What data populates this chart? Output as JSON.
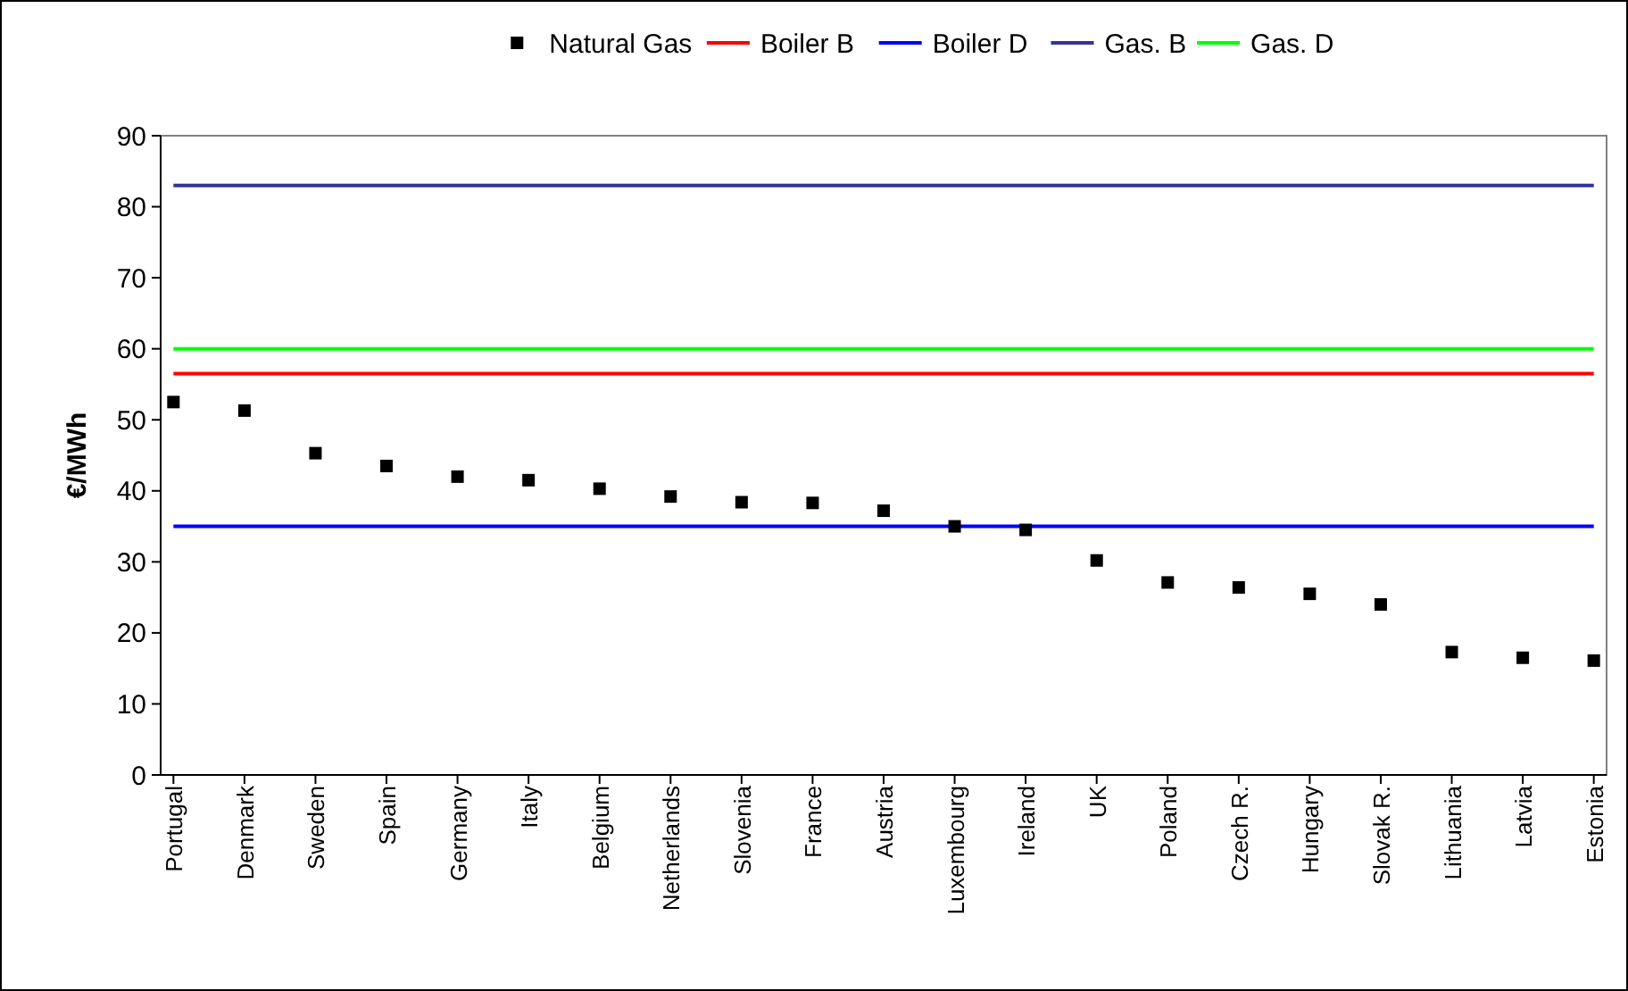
{
  "chart_data": {
    "type": "scatter",
    "ylabel": "€/MWh",
    "categories": [
      "Portugal",
      "Denmark",
      "Sweden",
      "Spain",
      "Germany",
      "Italy",
      "Belgium",
      "Netherlands",
      "Slovenia",
      "France",
      "Austria",
      "Luxembourg",
      "Ireland",
      "UK",
      "Poland",
      "Czech R.",
      "Hungary",
      "Slovak R.",
      "Lithuania",
      "Latvia",
      "Estonia"
    ],
    "series": [
      {
        "name": "Natural Gas",
        "marker": "square",
        "color": "#000000",
        "values": [
          52.5,
          51.3,
          45.3,
          43.5,
          42,
          41.5,
          40.3,
          39.2,
          38.4,
          38.3,
          37.2,
          35,
          34.5,
          30.2,
          27.1,
          26.4,
          25.5,
          24,
          17.3,
          16.5,
          16.1
        ]
      },
      {
        "name": "Boiler B",
        "type": "line",
        "color": "#ff0000",
        "values": [
          56.5,
          56.5,
          56.5,
          56.5,
          56.5,
          56.5,
          56.5,
          56.5,
          56.5,
          56.5,
          56.5,
          56.5,
          56.5,
          56.5,
          56.5,
          56.5,
          56.5,
          56.5,
          56.5,
          56.5,
          56.5
        ]
      },
      {
        "name": "Boiler D",
        "type": "line",
        "color": "#0000ff",
        "values": [
          35,
          35,
          35,
          35,
          35,
          35,
          35,
          35,
          35,
          35,
          35,
          35,
          35,
          35,
          35,
          35,
          35,
          35,
          35,
          35,
          35
        ]
      },
      {
        "name": "Gas. B",
        "type": "line",
        "color": "#333399",
        "values": [
          83,
          83,
          83,
          83,
          83,
          83,
          83,
          83,
          83,
          83,
          83,
          83,
          83,
          83,
          83,
          83,
          83,
          83,
          83,
          83,
          83
        ]
      },
      {
        "name": "Gas. D",
        "type": "line",
        "color": "#00ff00",
        "values": [
          60,
          60,
          60,
          60,
          60,
          60,
          60,
          60,
          60,
          60,
          60,
          60,
          60,
          60,
          60,
          60,
          60,
          60,
          60,
          60,
          60
        ]
      }
    ],
    "ylim": [
      0,
      90
    ],
    "yticks": [
      0,
      10,
      20,
      30,
      40,
      50,
      60,
      70,
      80,
      90
    ],
    "grid": false,
    "legend": "top",
    "line_style": "solid"
  }
}
